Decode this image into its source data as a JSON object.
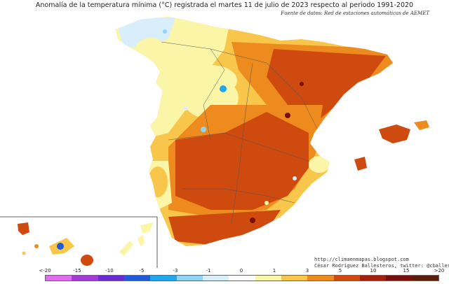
{
  "title": "Anomalía de la temperatura mínima (°C) registrada el martes 11 de julio de 2023 respecto al periodo 1991-2020",
  "source": "Fuente de datos: Red de estaciones automáticas de AEMET",
  "credits": {
    "url": "http://climaenmapas.blogspot.com",
    "author": "César Rodríguez Ballesteros, twitter: @cballesteros"
  },
  "legend": {
    "ticks": [
      "<-20",
      "-15",
      "-10",
      "-5",
      "-3",
      "-1",
      "0",
      "1",
      "3",
      "5",
      "10",
      "15",
      ">20"
    ],
    "colors": [
      "#e26cf0",
      "#a63ad8",
      "#6a2ad0",
      "#1f5ad8",
      "#1ea8f0",
      "#8fd3f5",
      "#d8eefb",
      "#ffffff",
      "#fbf5a8",
      "#f7c64a",
      "#ee8b1e",
      "#cf4a0e",
      "#a5200c",
      "#7a0e08",
      "#5a1d05"
    ]
  }
}
